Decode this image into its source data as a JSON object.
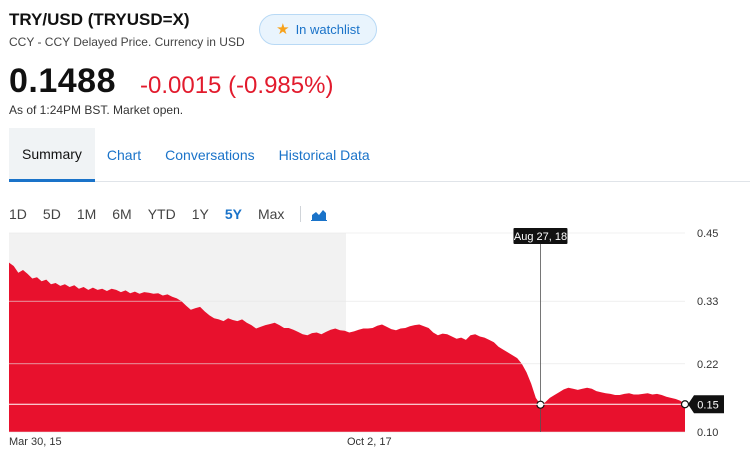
{
  "header": {
    "title": "TRY/USD (TRYUSD=X)",
    "subtitle": "CCY - CCY Delayed Price. Currency in USD",
    "watchlist_label": "In watchlist",
    "watchlist_icon": "star-icon"
  },
  "quote": {
    "price": "0.1488",
    "change": "-0.0015 (-0.985%)",
    "as_of": "As of 1:24PM BST. Market open.",
    "change_color": "#e21b2d"
  },
  "tabs": [
    {
      "label": "Summary",
      "active": true
    },
    {
      "label": "Chart",
      "active": false
    },
    {
      "label": "Conversations",
      "active": false
    },
    {
      "label": "Historical Data",
      "active": false
    }
  ],
  "ranges": [
    {
      "label": "1D",
      "active": false
    },
    {
      "label": "5D",
      "active": false
    },
    {
      "label": "1M",
      "active": false
    },
    {
      "label": "6M",
      "active": false
    },
    {
      "label": "YTD",
      "active": false
    },
    {
      "label": "1Y",
      "active": false
    },
    {
      "label": "5Y",
      "active": true
    },
    {
      "label": "Max",
      "active": false
    }
  ],
  "chart_type_icon": "area-chart-icon",
  "accent_color": "#1a73c9",
  "chart_data": {
    "type": "area",
    "x_tick_labels": [
      "Mar 30, 15",
      "Oct 2, 17"
    ],
    "y_tick_labels": [
      "0.45",
      "0.33",
      "0.22",
      "0.10"
    ],
    "ylim": [
      0.1,
      0.45
    ],
    "hover_label": "Aug 27, 18",
    "current_value_label": "0.15",
    "current_value": 0.1488,
    "fill_color": "#e8112d",
    "shaded_period": "Mar 30, 15 to Oct 2, 17",
    "series": [
      {
        "values": [
          0.398,
          0.392,
          0.38,
          0.385,
          0.378,
          0.37,
          0.372,
          0.365,
          0.368,
          0.36,
          0.362,
          0.357,
          0.36,
          0.355,
          0.358,
          0.352,
          0.355,
          0.35,
          0.354,
          0.35,
          0.352,
          0.348,
          0.352,
          0.35,
          0.346,
          0.349,
          0.344,
          0.347,
          0.343,
          0.346,
          0.345,
          0.343,
          0.344,
          0.34,
          0.342,
          0.338,
          0.335,
          0.33,
          0.322,
          0.315,
          0.318,
          0.32,
          0.312,
          0.305,
          0.3,
          0.298,
          0.295,
          0.3,
          0.297,
          0.295,
          0.298,
          0.292,
          0.288,
          0.282,
          0.285,
          0.288,
          0.29,
          0.292,
          0.288,
          0.283,
          0.283,
          0.28,
          0.276,
          0.272,
          0.27,
          0.274,
          0.275,
          0.272,
          0.276,
          0.28,
          0.282,
          0.279,
          0.278,
          0.275,
          0.277,
          0.28,
          0.282,
          0.282,
          0.283,
          0.287,
          0.289,
          0.285,
          0.281,
          0.279,
          0.282,
          0.283,
          0.286,
          0.288,
          0.289,
          0.286,
          0.283,
          0.275,
          0.27,
          0.273,
          0.272,
          0.268,
          0.264,
          0.266,
          0.262,
          0.27,
          0.272,
          0.268,
          0.266,
          0.262,
          0.258,
          0.25,
          0.245,
          0.24,
          0.235,
          0.23,
          0.22,
          0.205,
          0.185,
          0.16,
          0.148,
          0.152,
          0.16,
          0.165,
          0.17,
          0.175,
          0.178,
          0.176,
          0.174,
          0.176,
          0.178,
          0.176,
          0.172,
          0.17,
          0.168,
          0.167,
          0.165,
          0.165,
          0.167,
          0.168,
          0.166,
          0.166,
          0.167,
          0.168,
          0.166,
          0.167,
          0.165,
          0.162,
          0.16,
          0.158,
          0.155,
          0.1488
        ]
      }
    ]
  }
}
